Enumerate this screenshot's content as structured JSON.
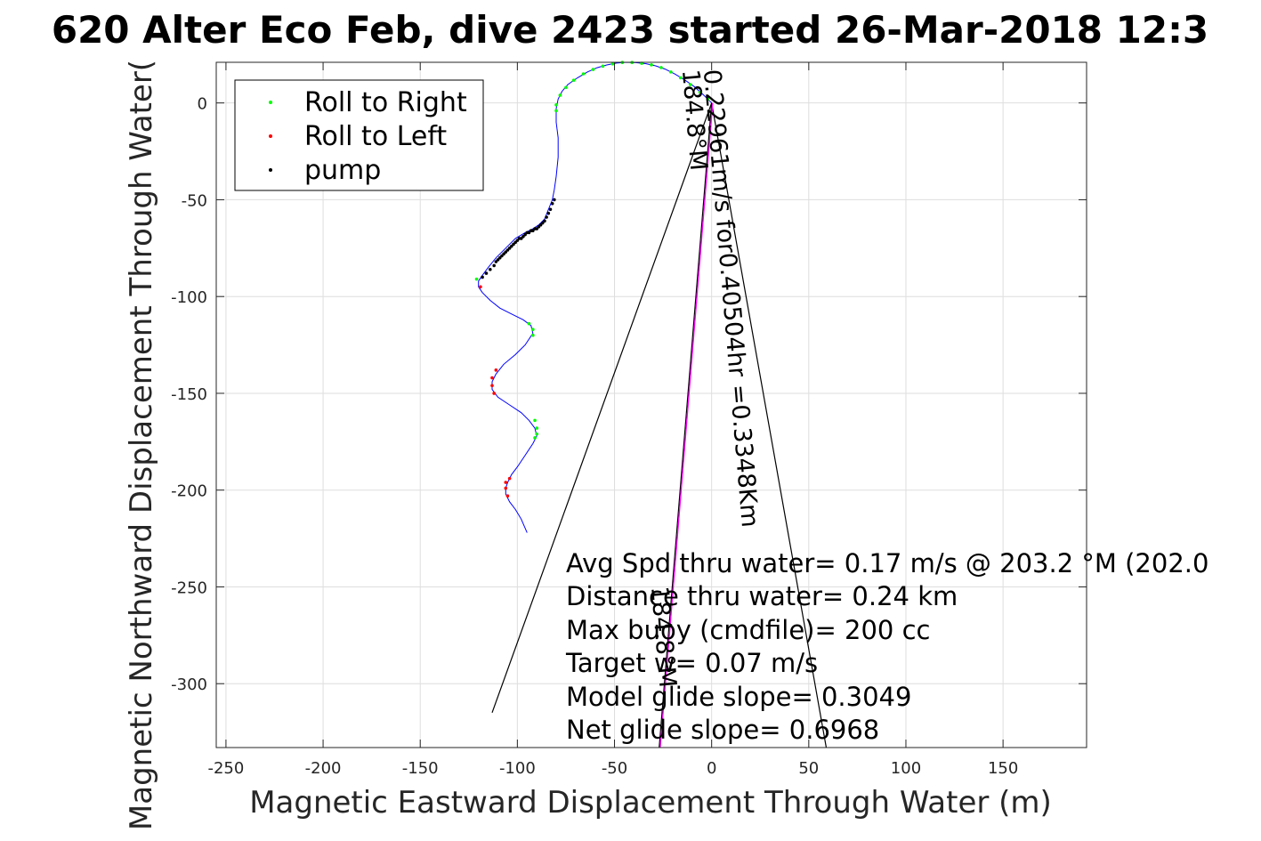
{
  "chart_data": {
    "type": "line",
    "title": "620 Alter Eco Feb, dive 2423 started 26-Mar-2018 12:3",
    "xlabel": "Magnetic Eastward Displacement Through Water (m)",
    "ylabel": "Magnetic Northward Displacement Through Water(",
    "xlim": [
      -255,
      193
    ],
    "ylim": [
      -333,
      21
    ],
    "xticks": [
      -250,
      -200,
      -150,
      -100,
      -50,
      0,
      50,
      100,
      150
    ],
    "yticks": [
      0,
      -50,
      -100,
      -150,
      -200,
      -250,
      -300
    ],
    "xtick_labels": [
      "-250",
      "-200",
      "-150",
      "-100",
      "-50",
      "0",
      "50",
      "100",
      "150"
    ],
    "ytick_labels": [
      "0",
      "-50",
      "-100",
      "-150",
      "-200",
      "-250",
      "-300"
    ],
    "grid": true,
    "legend_position": "top-left",
    "legend": [
      {
        "label": "Roll to Right",
        "color": "#00ff00"
      },
      {
        "label": "Roll to Left",
        "color": "#ff0000"
      },
      {
        "label": "pump",
        "color": "#000000"
      }
    ],
    "track": {
      "color": "#0000ff",
      "points": [
        [
          0,
          0
        ],
        [
          -4,
          4
        ],
        [
          -9,
          8.5
        ],
        [
          -14,
          12
        ],
        [
          -19,
          15
        ],
        [
          -24,
          17.5
        ],
        [
          -29,
          19.2
        ],
        [
          -34,
          20.3
        ],
        [
          -39,
          20.8
        ],
        [
          -44,
          21
        ],
        [
          -49,
          20.6
        ],
        [
          -54,
          19.6
        ],
        [
          -59,
          18.2
        ],
        [
          -64,
          16
        ],
        [
          -69,
          13
        ],
        [
          -74,
          9.5
        ],
        [
          -77,
          6
        ],
        [
          -79,
          2
        ],
        [
          -80,
          -3
        ],
        [
          -80,
          -10
        ],
        [
          -79,
          -18
        ],
        [
          -79,
          -28
        ],
        [
          -80,
          -38
        ],
        [
          -81,
          -45
        ],
        [
          -82,
          -50
        ],
        [
          -84,
          -55
        ],
        [
          -86,
          -60
        ],
        [
          -89,
          -63
        ],
        [
          -92,
          -65
        ],
        [
          -96,
          -67
        ],
        [
          -101,
          -70
        ],
        [
          -106,
          -75
        ],
        [
          -111,
          -80
        ],
        [
          -115,
          -85
        ],
        [
          -118,
          -89
        ],
        [
          -120,
          -92
        ],
        [
          -120,
          -95
        ],
        [
          -118,
          -98
        ],
        [
          -114,
          -102
        ],
        [
          -109,
          -106
        ],
        [
          -103,
          -109
        ],
        [
          -97,
          -112
        ],
        [
          -93,
          -115
        ],
        [
          -92,
          -119
        ],
        [
          -96,
          -125
        ],
        [
          -101,
          -130
        ],
        [
          -107,
          -135
        ],
        [
          -111,
          -140
        ],
        [
          -113,
          -144
        ],
        [
          -113,
          -148
        ],
        [
          -110,
          -152
        ],
        [
          -104,
          -156
        ],
        [
          -98,
          -160
        ],
        [
          -94,
          -164
        ],
        [
          -91,
          -168
        ],
        [
          -90,
          -172
        ],
        [
          -92,
          -176
        ],
        [
          -96,
          -182
        ],
        [
          -100,
          -188
        ],
        [
          -103,
          -192
        ],
        [
          -105,
          -196
        ],
        [
          -106,
          -199
        ],
        [
          -106,
          -202
        ],
        [
          -104,
          -206
        ],
        [
          -101,
          -210
        ],
        [
          -98,
          -215
        ],
        [
          -95,
          -222
        ]
      ]
    },
    "roll_right_points": [
      [
        -2,
        2
      ],
      [
        -6,
        5.5
      ],
      [
        -11,
        9.5
      ],
      [
        -16,
        13
      ],
      [
        -21,
        16
      ],
      [
        -26,
        18.3
      ],
      [
        -31,
        19.7
      ],
      [
        -36,
        20.5
      ],
      [
        -41,
        20.9
      ],
      [
        -46,
        20.9
      ],
      [
        -51,
        20.2
      ],
      [
        -56,
        19
      ],
      [
        -61,
        17.3
      ],
      [
        -66,
        15
      ],
      [
        -71,
        11.7
      ],
      [
        -75,
        8
      ],
      [
        -78,
        4
      ],
      [
        -80,
        -1
      ],
      [
        -80,
        -4
      ],
      [
        -121,
        -91
      ],
      [
        -94,
        -114
      ],
      [
        -92,
        -117
      ],
      [
        -92,
        -120
      ],
      [
        -91,
        -164
      ],
      [
        -90,
        -168
      ],
      [
        -90,
        -171
      ],
      [
        -91,
        -173
      ]
    ],
    "roll_left_points": [
      [
        -119,
        -95
      ],
      [
        -111,
        -138
      ],
      [
        -113,
        -142
      ],
      [
        -113,
        -146
      ],
      [
        -112,
        -150
      ],
      [
        -104,
        -194
      ],
      [
        -106,
        -196
      ],
      [
        -106,
        -199
      ],
      [
        -105,
        -203
      ]
    ],
    "pump_points": [
      [
        -81,
        -50
      ],
      [
        -82,
        -52
      ],
      [
        -83,
        -55
      ],
      [
        -84,
        -57
      ],
      [
        -85,
        -59
      ],
      [
        -86,
        -61
      ],
      [
        -87,
        -62
      ],
      [
        -88,
        -63
      ],
      [
        -89,
        -64
      ],
      [
        -90,
        -65
      ],
      [
        -91,
        -65
      ],
      [
        -92,
        -66
      ],
      [
        -93,
        -66
      ],
      [
        -94,
        -67
      ],
      [
        -95,
        -67
      ],
      [
        -96,
        -68
      ],
      [
        -97,
        -69
      ],
      [
        -98,
        -70
      ],
      [
        -99,
        -70
      ],
      [
        -100,
        -71
      ],
      [
        -101,
        -72
      ],
      [
        -102,
        -73
      ],
      [
        -103,
        -74
      ],
      [
        -104,
        -75
      ],
      [
        -105,
        -76
      ],
      [
        -106,
        -77
      ],
      [
        -107,
        -78
      ],
      [
        -108,
        -79
      ],
      [
        -109,
        -80
      ],
      [
        -110,
        -81
      ],
      [
        -111,
        -82
      ],
      [
        -112,
        -84
      ],
      [
        -114,
        -86
      ],
      [
        -116,
        -88
      ],
      [
        -118,
        -90
      ]
    ],
    "cone": {
      "apex": [
        0,
        0
      ],
      "left": [
        -113,
        -315
      ],
      "right": [
        59,
        -333
      ]
    },
    "heading_line": {
      "color": "#ff00ff",
      "from": [
        0,
        0
      ],
      "to": [
        -27,
        -333
      ]
    },
    "rotated_labels": [
      {
        "text": "0.22961m/s for0.40504hr =0.3348Km",
        "anchor": [
          -4,
          17
        ],
        "angle": 85.2
      },
      {
        "text": "184.8°M",
        "anchor": [
          -15,
          17
        ],
        "angle": 85.2
      },
      {
        "text": "184.8°M",
        "anchor": [
          -31,
          -250
        ],
        "angle": 85.2
      }
    ],
    "annotations": [
      "Avg Spd thru water=  0.17 m/s @ 203.2 °M (202.0",
      "Distance thru water=  0.24 km",
      "Max buoy (cmdfile)= 200 cc",
      "Target w= 0.07 m/s",
      "Model glide slope= 0.3049",
      "Net glide slope= 0.6968"
    ]
  }
}
